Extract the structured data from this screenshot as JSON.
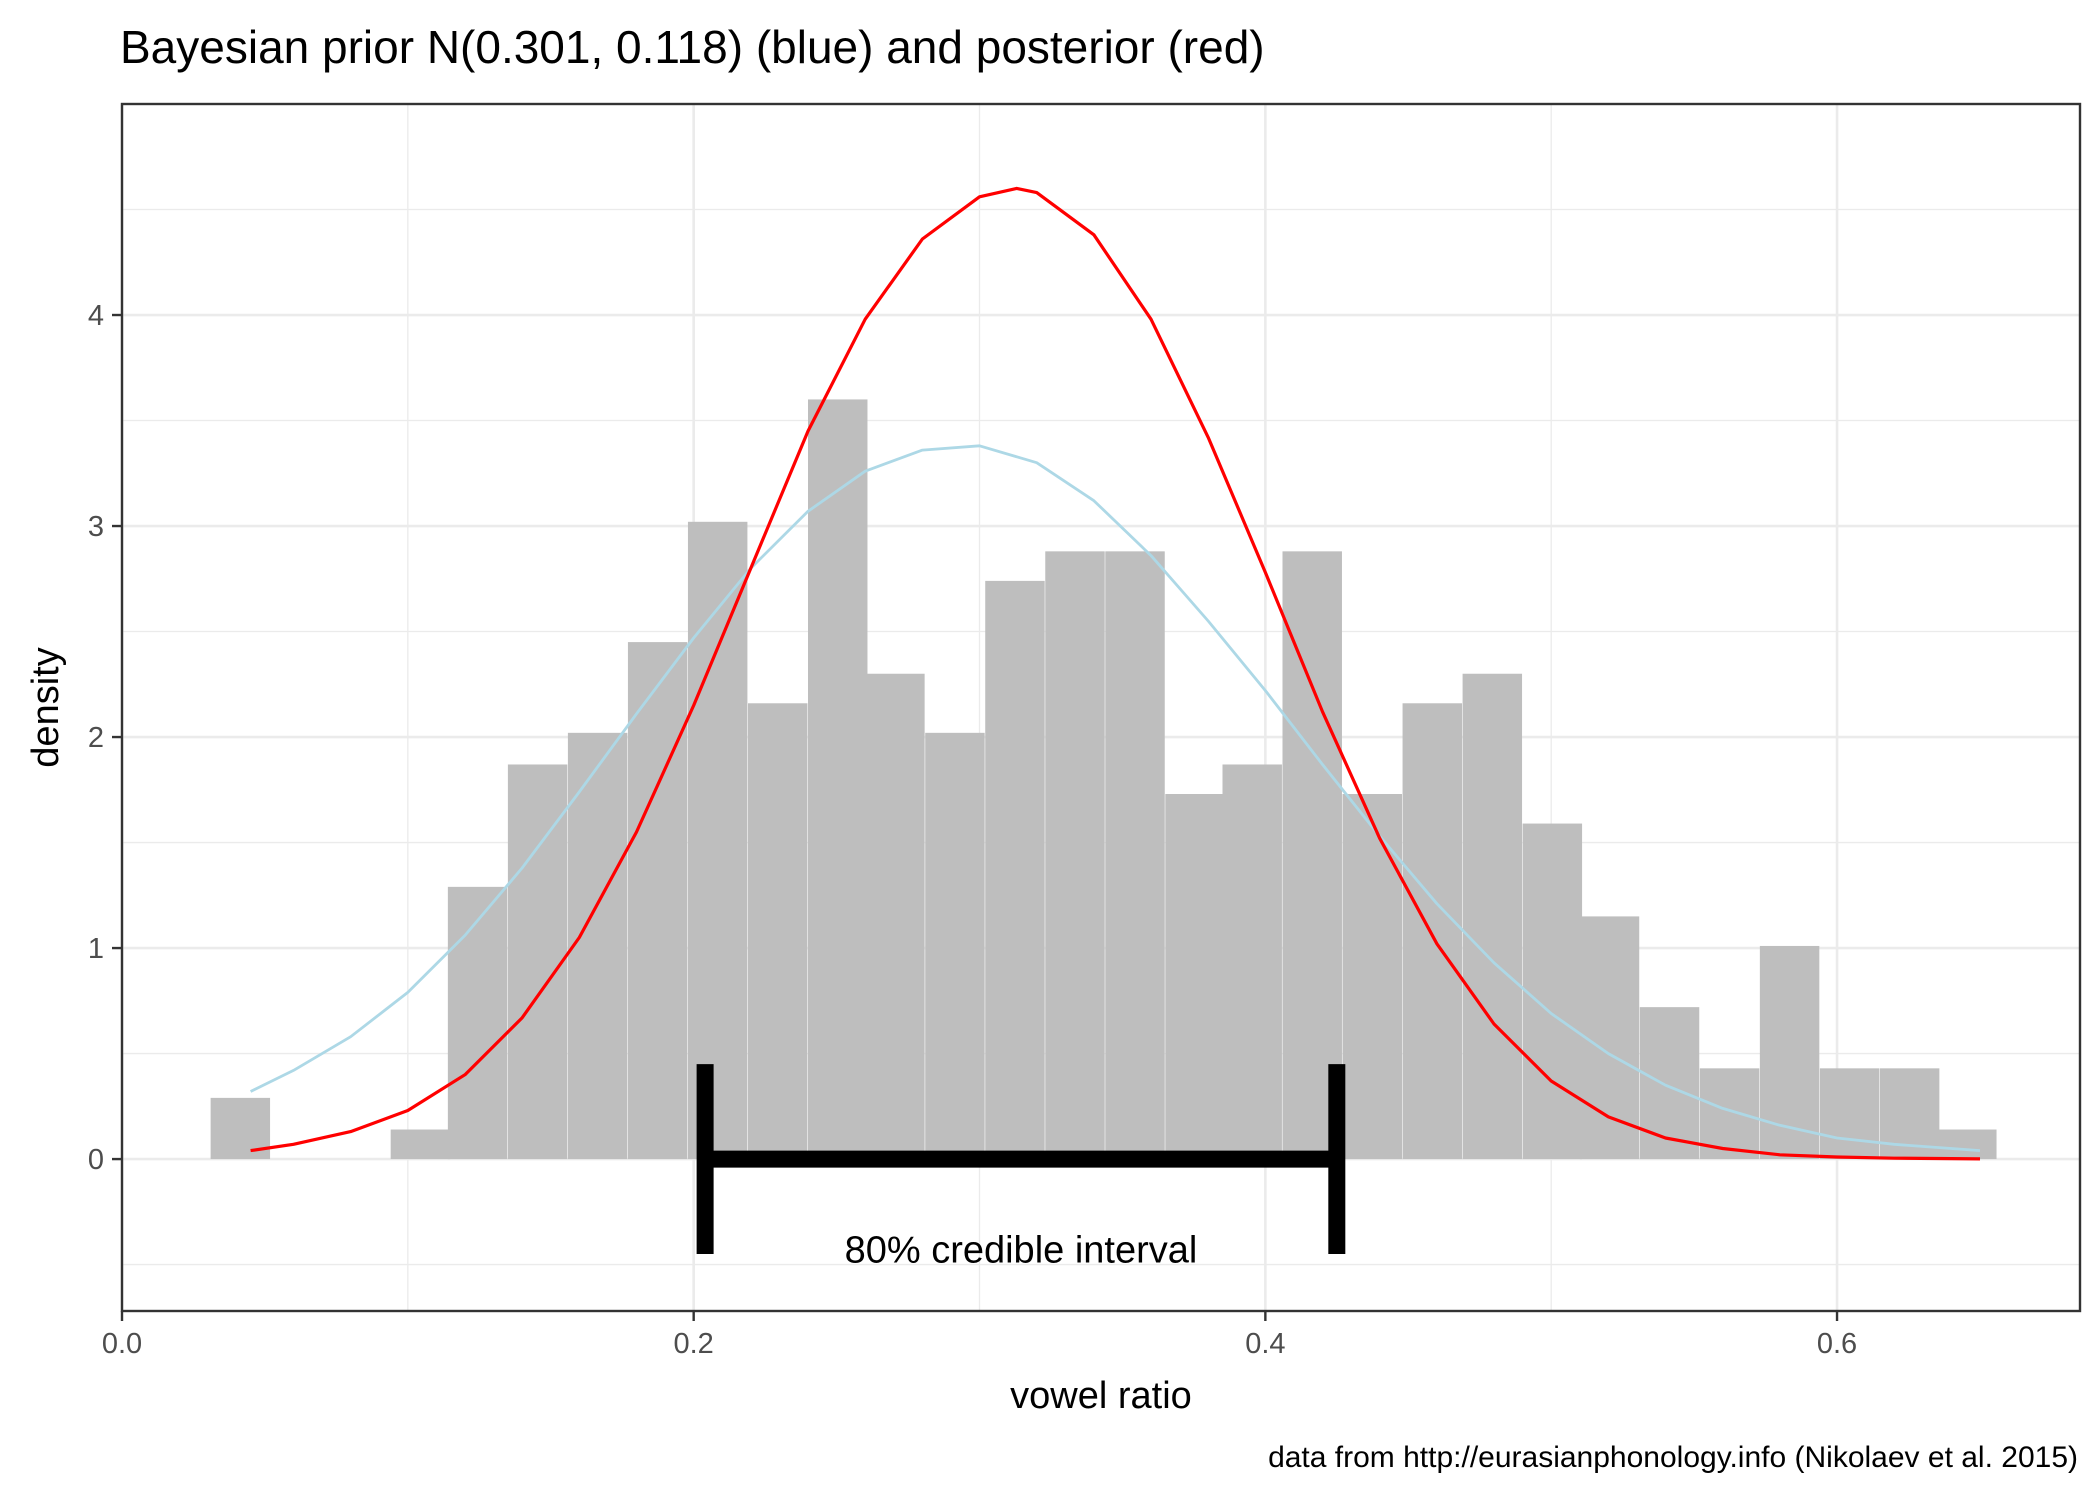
{
  "chart_data": {
    "type": "histogram",
    "title": "Bayesian prior N(0.301, 0.118) (blue) and posterior (red)",
    "xlabel": "vowel ratio",
    "ylabel": "density",
    "caption": "data from http://eurasianphonology.info (Nikolaev et al. 2015)",
    "xlim": [
      0.0,
      0.685
    ],
    "ylim": [
      -0.72,
      5.0
    ],
    "x_ticks": [
      0.0,
      0.2,
      0.4,
      0.6
    ],
    "x_tick_labels": [
      "0.0",
      "0.2",
      "0.4",
      "0.6"
    ],
    "y_ticks": [
      0,
      1,
      2,
      3,
      4
    ],
    "y_tick_labels": [
      "0",
      "1",
      "2",
      "3",
      "4"
    ],
    "grid": true,
    "bin_width": 0.0208,
    "histogram": {
      "bin_start": [
        0.031,
        0.052,
        0.073,
        0.094,
        0.114,
        0.135,
        0.156,
        0.177,
        0.198,
        0.219,
        0.24,
        0.26,
        0.281,
        0.302,
        0.323,
        0.344,
        0.365,
        0.385,
        0.406,
        0.427,
        0.448,
        0.469,
        0.49,
        0.51,
        0.531,
        0.552,
        0.573,
        0.594,
        0.615,
        0.635
      ],
      "density": [
        0.29,
        0,
        0,
        0.14,
        1.29,
        1.87,
        2.02,
        2.45,
        3.02,
        2.16,
        3.6,
        2.3,
        2.02,
        2.74,
        2.88,
        2.88,
        1.73,
        1.87,
        2.88,
        1.73,
        2.16,
        2.3,
        1.59,
        1.15,
        0.72,
        0.43,
        1.01,
        0.43,
        0.43,
        0.14
      ],
      "color": "#bebebe"
    },
    "series": [
      {
        "color": "#add8e6",
        "x": [
          0.045,
          0.06,
          0.08,
          0.1,
          0.12,
          0.14,
          0.16,
          0.18,
          0.2,
          0.22,
          0.24,
          0.26,
          0.28,
          0.3,
          0.32,
          0.34,
          0.36,
          0.38,
          0.4,
          0.42,
          0.44,
          0.46,
          0.48,
          0.5,
          0.52,
          0.54,
          0.56,
          0.58,
          0.6,
          0.62,
          0.64,
          0.65
        ],
        "y": [
          0.32,
          0.42,
          0.58,
          0.79,
          1.06,
          1.38,
          1.74,
          2.11,
          2.47,
          2.8,
          3.07,
          3.26,
          3.36,
          3.38,
          3.3,
          3.12,
          2.86,
          2.55,
          2.22,
          1.87,
          1.53,
          1.21,
          0.93,
          0.69,
          0.5,
          0.35,
          0.24,
          0.16,
          0.1,
          0.07,
          0.05,
          0.04
        ]
      },
      {
        "color": "#ff0000",
        "x": [
          0.045,
          0.06,
          0.08,
          0.1,
          0.12,
          0.14,
          0.16,
          0.18,
          0.2,
          0.22,
          0.24,
          0.26,
          0.28,
          0.3,
          0.313,
          0.32,
          0.34,
          0.36,
          0.38,
          0.4,
          0.42,
          0.44,
          0.46,
          0.48,
          0.5,
          0.52,
          0.54,
          0.56,
          0.58,
          0.6,
          0.62,
          0.64,
          0.65
        ],
        "y": [
          0.04,
          0.07,
          0.13,
          0.23,
          0.4,
          0.67,
          1.05,
          1.55,
          2.15,
          2.8,
          3.45,
          3.98,
          4.36,
          4.56,
          4.6,
          4.58,
          4.38,
          3.98,
          3.42,
          2.78,
          2.12,
          1.52,
          1.02,
          0.64,
          0.37,
          0.2,
          0.1,
          0.05,
          0.02,
          0.01,
          0.004,
          0.002,
          0.001
        ]
      }
    ],
    "annotation": {
      "label": "80% credible interval",
      "interval": [
        0.204,
        0.425
      ],
      "y": 0,
      "cap_range": [
        -0.45,
        0.45
      ]
    }
  }
}
